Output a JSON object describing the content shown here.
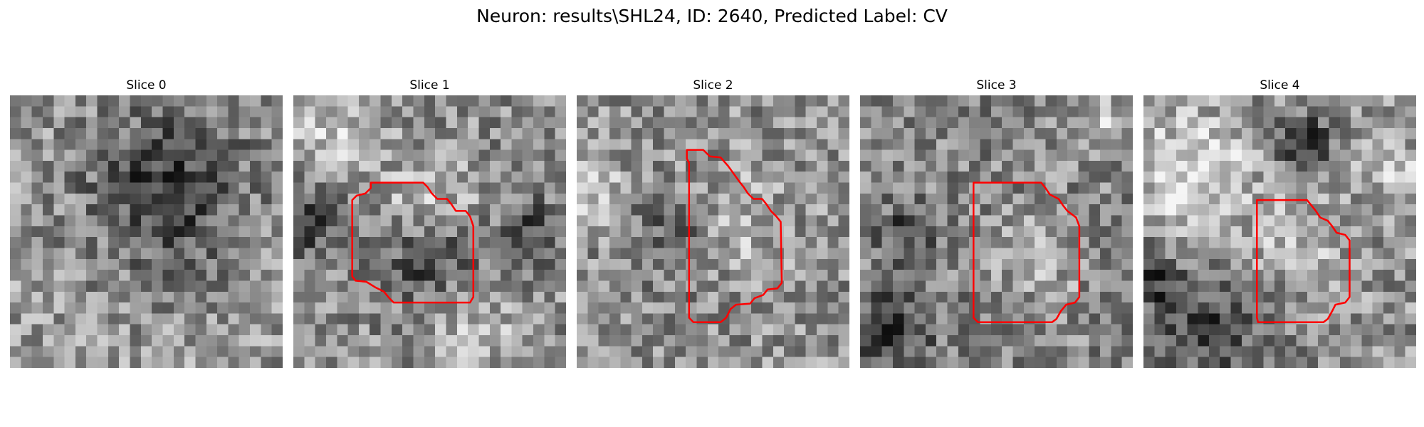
{
  "figure": {
    "title": "Neuron: results\\SHL24, ID: 2640, Predicted Label: CV"
  },
  "colors": {
    "background": "#ffffff",
    "contour": "#ff0000"
  },
  "grid_size": 25,
  "panels": [
    {
      "title": "Slice 0",
      "seed": 11,
      "base_level": 150,
      "dark_blobs": [
        {
          "cx": 14,
          "cy": 8,
          "r": 5,
          "amp": 95
        }
      ],
      "light_blobs": [],
      "contour": []
    },
    {
      "title": "Slice 1",
      "seed": 23,
      "base_level": 140,
      "dark_blobs": [
        {
          "cx": 12,
          "cy": 14,
          "r": 3,
          "amp": 85
        },
        {
          "cx": 1,
          "cy": 11,
          "r": 2,
          "amp": 80
        },
        {
          "cx": 21,
          "cy": 12,
          "r": 2,
          "amp": 70
        }
      ],
      "light_blobs": [
        {
          "cx": 12,
          "cy": 10,
          "r": 3,
          "amp": 70
        },
        {
          "cx": 3,
          "cy": 3,
          "r": 3,
          "amp": 55
        },
        {
          "cx": 16,
          "cy": 21,
          "r": 3,
          "amp": 50
        }
      ],
      "contour": [
        [
          7.1,
          8
        ],
        [
          11.9,
          8
        ],
        [
          12.3,
          8.4
        ],
        [
          12.7,
          9
        ],
        [
          13.2,
          9.5
        ],
        [
          14.1,
          9.5
        ],
        [
          14.5,
          10
        ],
        [
          14.9,
          10.6
        ],
        [
          15.8,
          10.6
        ],
        [
          16.2,
          11.1
        ],
        [
          16.5,
          12
        ],
        [
          16.5,
          18.5
        ],
        [
          16.2,
          19
        ],
        [
          9.2,
          19
        ],
        [
          8.8,
          18.6
        ],
        [
          8.3,
          18
        ],
        [
          7.5,
          17.6
        ],
        [
          6.7,
          17.1
        ],
        [
          5.7,
          17
        ],
        [
          5.4,
          16.6
        ],
        [
          5.4,
          9.6
        ],
        [
          5.8,
          9.2
        ],
        [
          6.6,
          9
        ],
        [
          7.1,
          8.5
        ]
      ]
    },
    {
      "title": "Slice 2",
      "seed": 37,
      "base_level": 145,
      "dark_blobs": [
        {
          "cx": 9,
          "cy": 12,
          "r": 3,
          "amp": 55
        },
        {
          "cx": 17,
          "cy": 11,
          "r": 2,
          "amp": 50
        }
      ],
      "light_blobs": [
        {
          "cx": 15,
          "cy": 11,
          "r": 3,
          "amp": 70
        },
        {
          "cx": 1,
          "cy": 8,
          "r": 2,
          "amp": 60
        }
      ],
      "contour": [
        [
          10.1,
          5
        ],
        [
          11.6,
          5
        ],
        [
          12.2,
          5.6
        ],
        [
          13.2,
          5.7
        ],
        [
          13.9,
          6.5
        ],
        [
          14.4,
          7.2
        ],
        [
          14.9,
          7.9
        ],
        [
          15.3,
          8.4
        ],
        [
          15.7,
          9
        ],
        [
          16.2,
          9.5
        ],
        [
          17.0,
          9.5
        ],
        [
          17.4,
          10
        ],
        [
          17.8,
          10.6
        ],
        [
          18.3,
          11.1
        ],
        [
          18.7,
          11.6
        ],
        [
          18.8,
          17.2
        ],
        [
          18.4,
          17.7
        ],
        [
          17.5,
          17.8
        ],
        [
          17.1,
          18.3
        ],
        [
          16.3,
          18.6
        ],
        [
          15.9,
          19.1
        ],
        [
          14.6,
          19.2
        ],
        [
          14.1,
          19.6
        ],
        [
          13.9,
          20
        ],
        [
          13.7,
          20.4
        ],
        [
          13.2,
          20.8
        ],
        [
          10.7,
          20.8
        ],
        [
          10.3,
          20.4
        ],
        [
          10.3,
          6.2
        ],
        [
          10.1,
          5.8
        ]
      ]
    },
    {
      "title": "Slice 3",
      "seed": 53,
      "base_level": 135,
      "dark_blobs": [
        {
          "cx": 2,
          "cy": 21,
          "r": 3,
          "amp": 75
        },
        {
          "cx": 4,
          "cy": 12,
          "r": 2,
          "amp": 65
        }
      ],
      "light_blobs": [
        {
          "cx": 16,
          "cy": 14,
          "r": 3,
          "amp": 40
        },
        {
          "cx": 22,
          "cy": 2,
          "r": 2,
          "amp": 55
        }
      ],
      "contour": [
        [
          10.4,
          8
        ],
        [
          16.6,
          8
        ],
        [
          17.0,
          8.5
        ],
        [
          17.4,
          9.1
        ],
        [
          18.2,
          9.5
        ],
        [
          18.6,
          10.1
        ],
        [
          19.0,
          10.6
        ],
        [
          19.8,
          11.2
        ],
        [
          20.1,
          12
        ],
        [
          20.1,
          18.5
        ],
        [
          19.7,
          19
        ],
        [
          18.9,
          19.2
        ],
        [
          18.4,
          19.8
        ],
        [
          18.0,
          20.5
        ],
        [
          17.6,
          20.8
        ],
        [
          10.8,
          20.8
        ],
        [
          10.4,
          20.4
        ]
      ]
    },
    {
      "title": "Slice 4",
      "seed": 71,
      "base_level": 145,
      "dark_blobs": [
        {
          "cx": 14,
          "cy": 4,
          "r": 2,
          "amp": 95
        },
        {
          "cx": 5,
          "cy": 21,
          "r": 4,
          "amp": 75
        },
        {
          "cx": 0,
          "cy": 16,
          "r": 2,
          "amp": 75
        }
      ],
      "light_blobs": [
        {
          "cx": 4,
          "cy": 7,
          "r": 4,
          "amp": 80
        },
        {
          "cx": 14,
          "cy": 13,
          "r": 3,
          "amp": 45
        },
        {
          "cx": 22,
          "cy": 6,
          "r": 2,
          "amp": 60
        }
      ],
      "contour": [
        [
          10.4,
          9.6
        ],
        [
          15.0,
          9.6
        ],
        [
          15.4,
          10.1
        ],
        [
          15.8,
          10.6
        ],
        [
          16.2,
          11.2
        ],
        [
          16.9,
          11.5
        ],
        [
          17.3,
          12
        ],
        [
          17.7,
          12.6
        ],
        [
          18.5,
          12.8
        ],
        [
          18.9,
          13.3
        ],
        [
          18.9,
          18.5
        ],
        [
          18.5,
          19
        ],
        [
          17.6,
          19.2
        ],
        [
          17.3,
          19.8
        ],
        [
          16.9,
          20.5
        ],
        [
          16.5,
          20.8
        ],
        [
          10.5,
          20.8
        ],
        [
          10.4,
          20.4
        ]
      ]
    }
  ]
}
